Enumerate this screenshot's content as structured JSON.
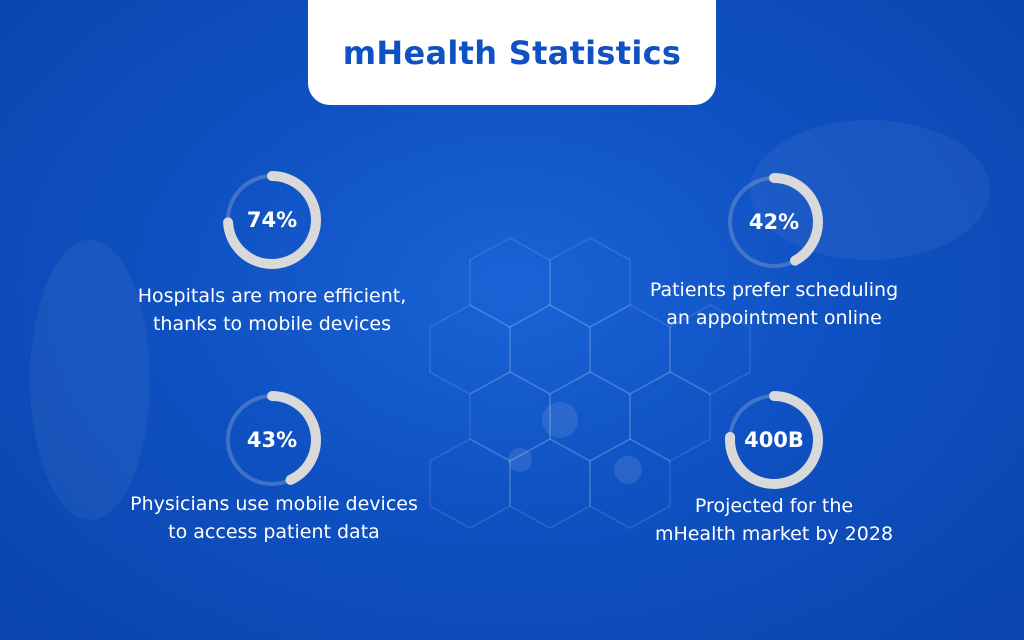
{
  "title": "mHealth Statistics",
  "colors": {
    "background": "#0f51c2",
    "card": "#ffffff",
    "ring": "#d9d9d9",
    "title": "#0f51c2"
  },
  "stats": [
    {
      "value": "74%",
      "label_line1": "Hospitals are more efficient,",
      "label_line2": "thanks to mobile devices",
      "ring_fraction": 0.74
    },
    {
      "value": "42%",
      "label_line1": "Patients prefer scheduling",
      "label_line2": "an appointment online",
      "ring_fraction": 0.42
    },
    {
      "value": "43%",
      "label_line1": "Physicians use mobile devices",
      "label_line2": "to access patient data",
      "ring_fraction": 0.43
    },
    {
      "value": "400B",
      "label_line1": "Projected for the",
      "label_line2": "mHealth market by 2028",
      "ring_fraction": 0.76
    }
  ]
}
